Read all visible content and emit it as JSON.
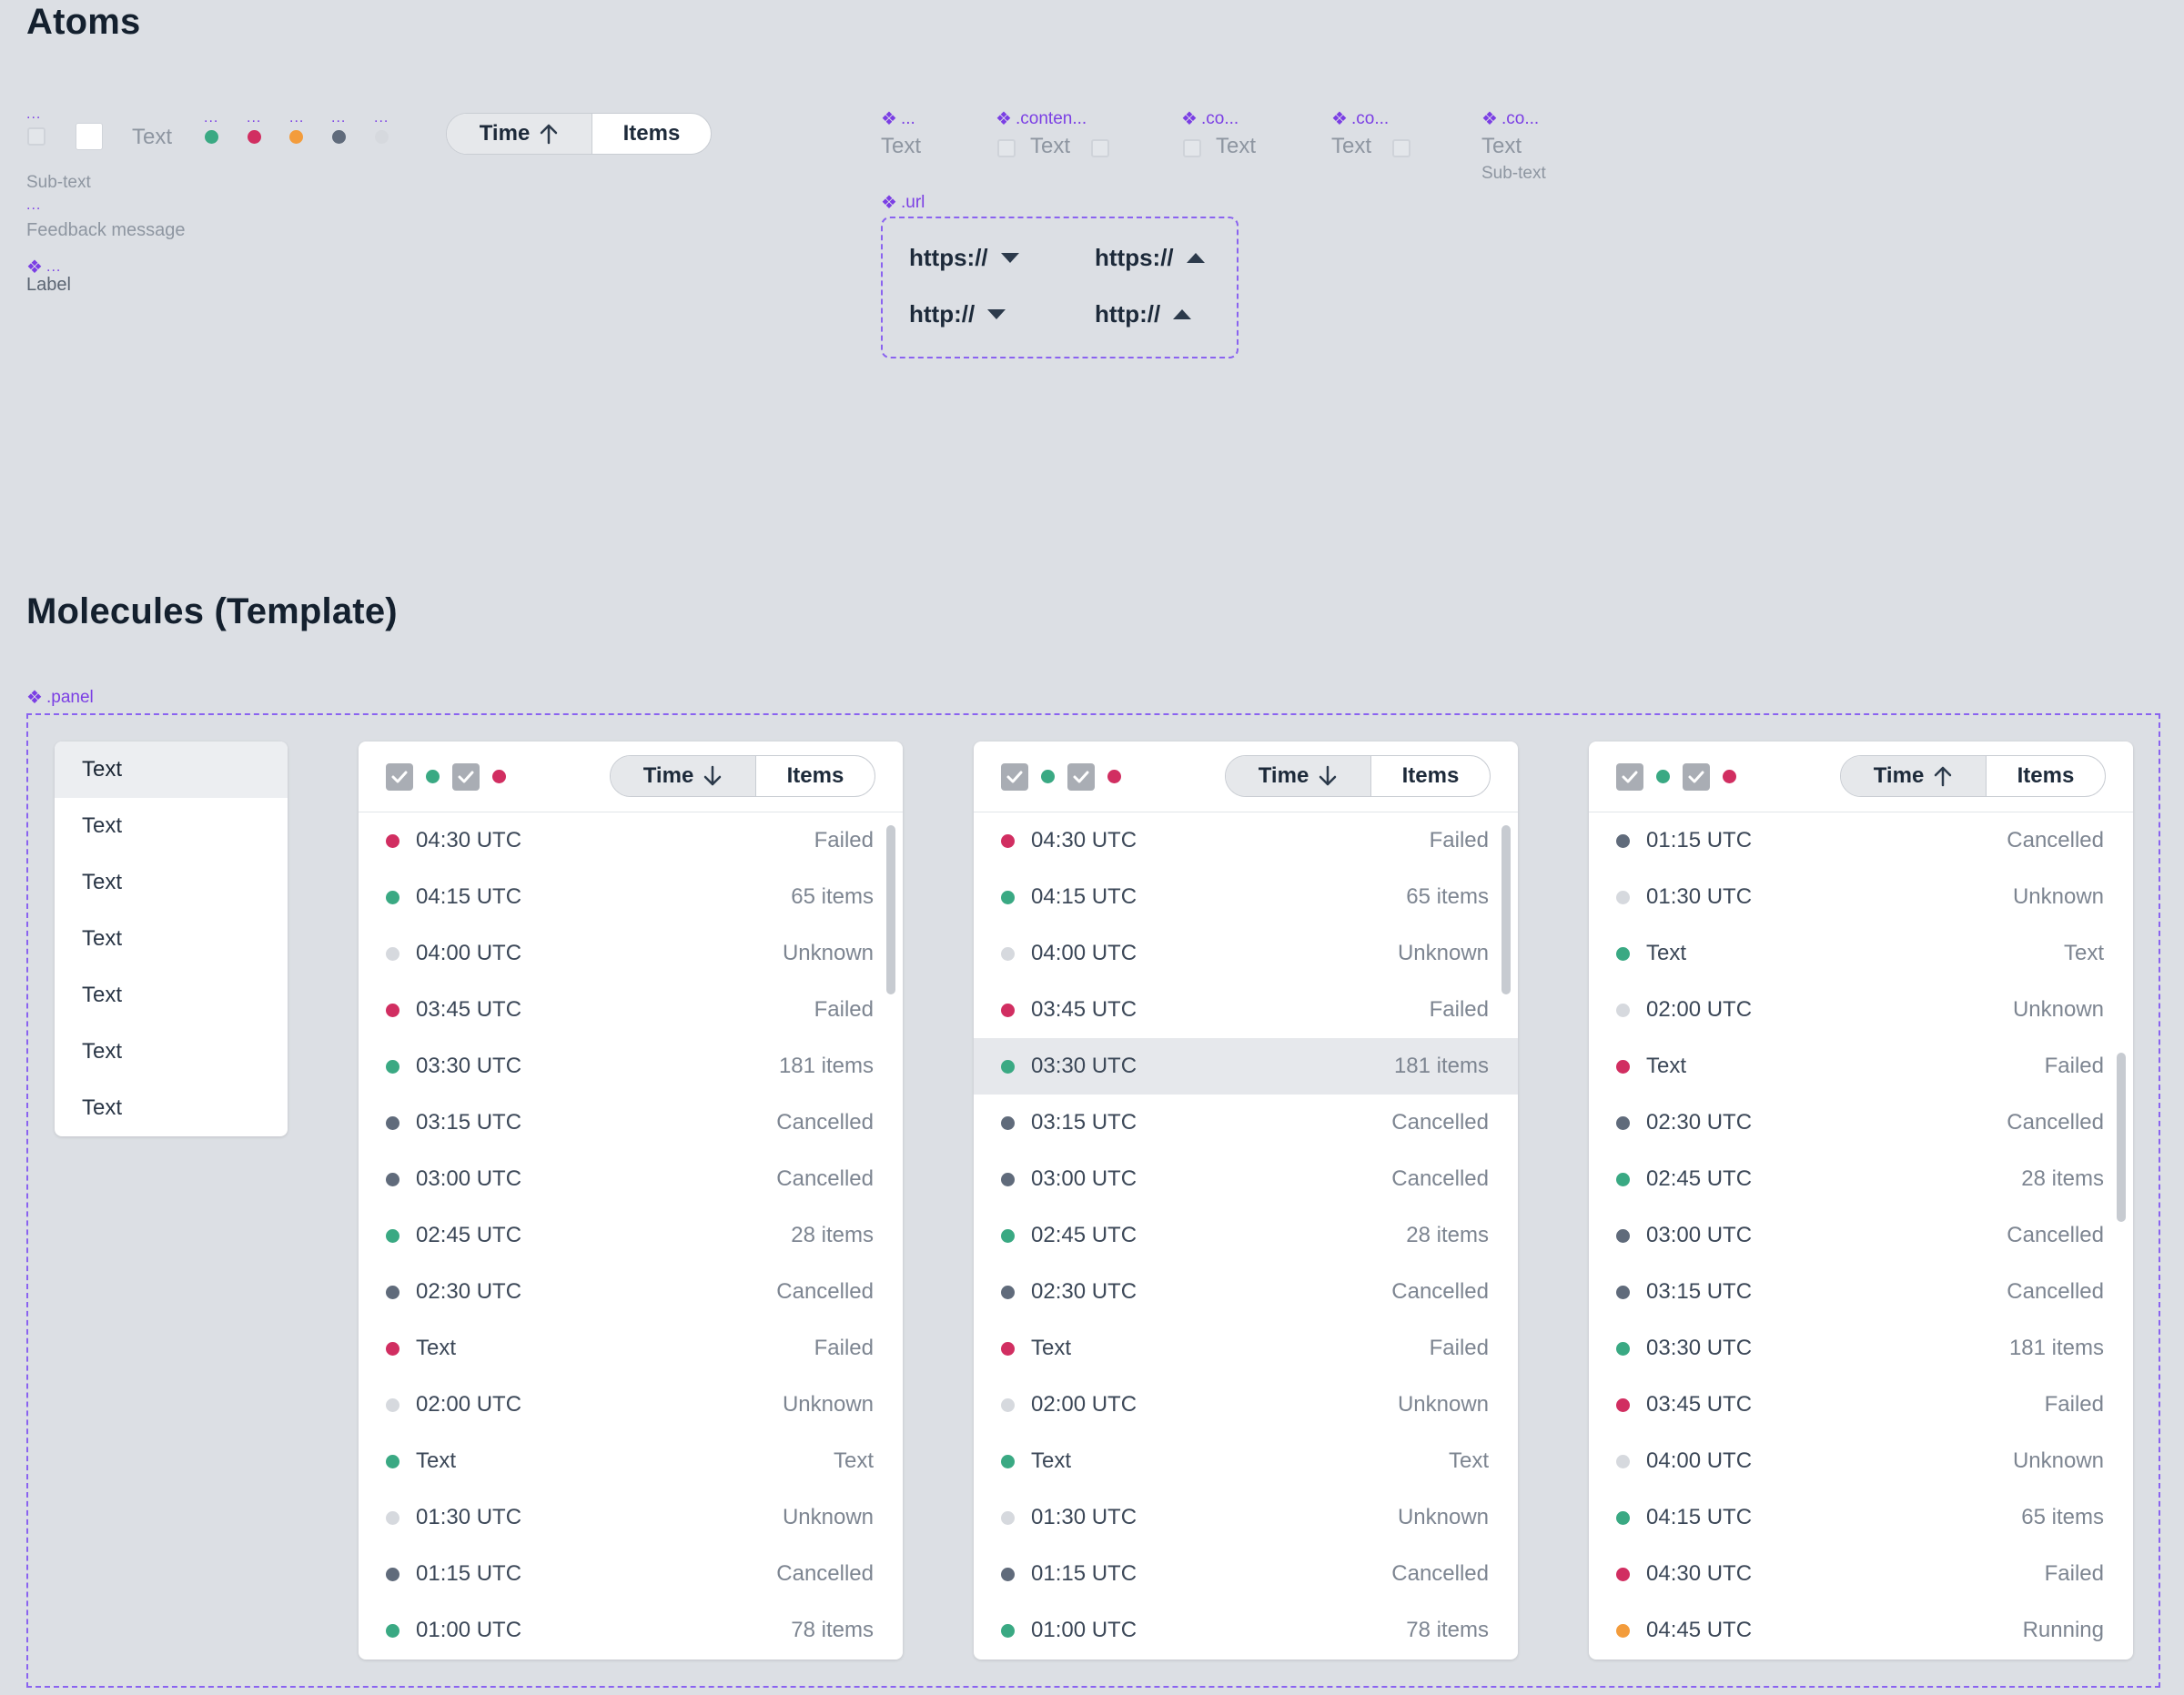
{
  "atoms": {
    "title": "Atoms",
    "label_dots": "...",
    "text": "Text",
    "subtext": "Sub-text",
    "feedback": "Feedback message",
    "label": "Label",
    "toggle_time": "Time",
    "toggle_items": "Items",
    "components": [
      {
        "name": "...",
        "text": "Text"
      },
      {
        "name": ".conten...",
        "text": "Text"
      },
      {
        "name": ".co...",
        "text": "Text"
      },
      {
        "name": ".co...",
        "text": "Text"
      },
      {
        "name": ".co...",
        "text": "Text",
        "subtext": "Sub-text"
      }
    ],
    "url_label": ".url",
    "url_items": [
      "https://",
      "https://",
      "http://",
      "http://"
    ]
  },
  "molecules": {
    "title": "Molecules (Template)",
    "panel_label": ".panel",
    "menu_items": [
      "Text",
      "Text",
      "Text",
      "Text",
      "Text",
      "Text",
      "Text"
    ],
    "toggle_time": "Time",
    "toggle_items": "Items",
    "list_a": [
      {
        "status": "red",
        "time": "04:30 UTC",
        "state": "Failed"
      },
      {
        "status": "green",
        "time": "04:15 UTC",
        "state": "65 items"
      },
      {
        "status": "light",
        "time": "04:00 UTC",
        "state": "Unknown"
      },
      {
        "status": "red",
        "time": "03:45 UTC",
        "state": "Failed"
      },
      {
        "status": "green",
        "time": "03:30 UTC",
        "state": "181 items"
      },
      {
        "status": "grey",
        "time": "03:15 UTC",
        "state": "Cancelled"
      },
      {
        "status": "grey",
        "time": "03:00 UTC",
        "state": "Cancelled"
      },
      {
        "status": "green",
        "time": "02:45 UTC",
        "state": "28 items"
      },
      {
        "status": "grey",
        "time": "02:30 UTC",
        "state": "Cancelled"
      },
      {
        "status": "red",
        "time": "Text",
        "state": "Failed"
      },
      {
        "status": "light",
        "time": "02:00 UTC",
        "state": "Unknown"
      },
      {
        "status": "green",
        "time": "Text",
        "state": "Text"
      },
      {
        "status": "light",
        "time": "01:30 UTC",
        "state": "Unknown"
      },
      {
        "status": "grey",
        "time": "01:15 UTC",
        "state": "Cancelled"
      },
      {
        "status": "green",
        "time": "01:00 UTC",
        "state": "78 items"
      }
    ],
    "list_c": [
      {
        "status": "grey",
        "time": "01:15 UTC",
        "state": "Cancelled"
      },
      {
        "status": "light",
        "time": "01:30 UTC",
        "state": "Unknown"
      },
      {
        "status": "green",
        "time": "Text",
        "state": "Text"
      },
      {
        "status": "light",
        "time": "02:00 UTC",
        "state": "Unknown"
      },
      {
        "status": "red",
        "time": "Text",
        "state": "Failed"
      },
      {
        "status": "grey",
        "time": "02:30 UTC",
        "state": "Cancelled"
      },
      {
        "status": "green",
        "time": "02:45 UTC",
        "state": "28 items"
      },
      {
        "status": "grey",
        "time": "03:00 UTC",
        "state": "Cancelled"
      },
      {
        "status": "grey",
        "time": "03:15 UTC",
        "state": "Cancelled"
      },
      {
        "status": "green",
        "time": "03:30 UTC",
        "state": "181 items"
      },
      {
        "status": "red",
        "time": "03:45 UTC",
        "state": "Failed"
      },
      {
        "status": "light",
        "time": "04:00 UTC",
        "state": "Unknown"
      },
      {
        "status": "green",
        "time": "04:15 UTC",
        "state": "65 items"
      },
      {
        "status": "red",
        "time": "04:30 UTC",
        "state": "Failed"
      },
      {
        "status": "orange",
        "time": "04:45 UTC",
        "state": "Running"
      }
    ]
  }
}
